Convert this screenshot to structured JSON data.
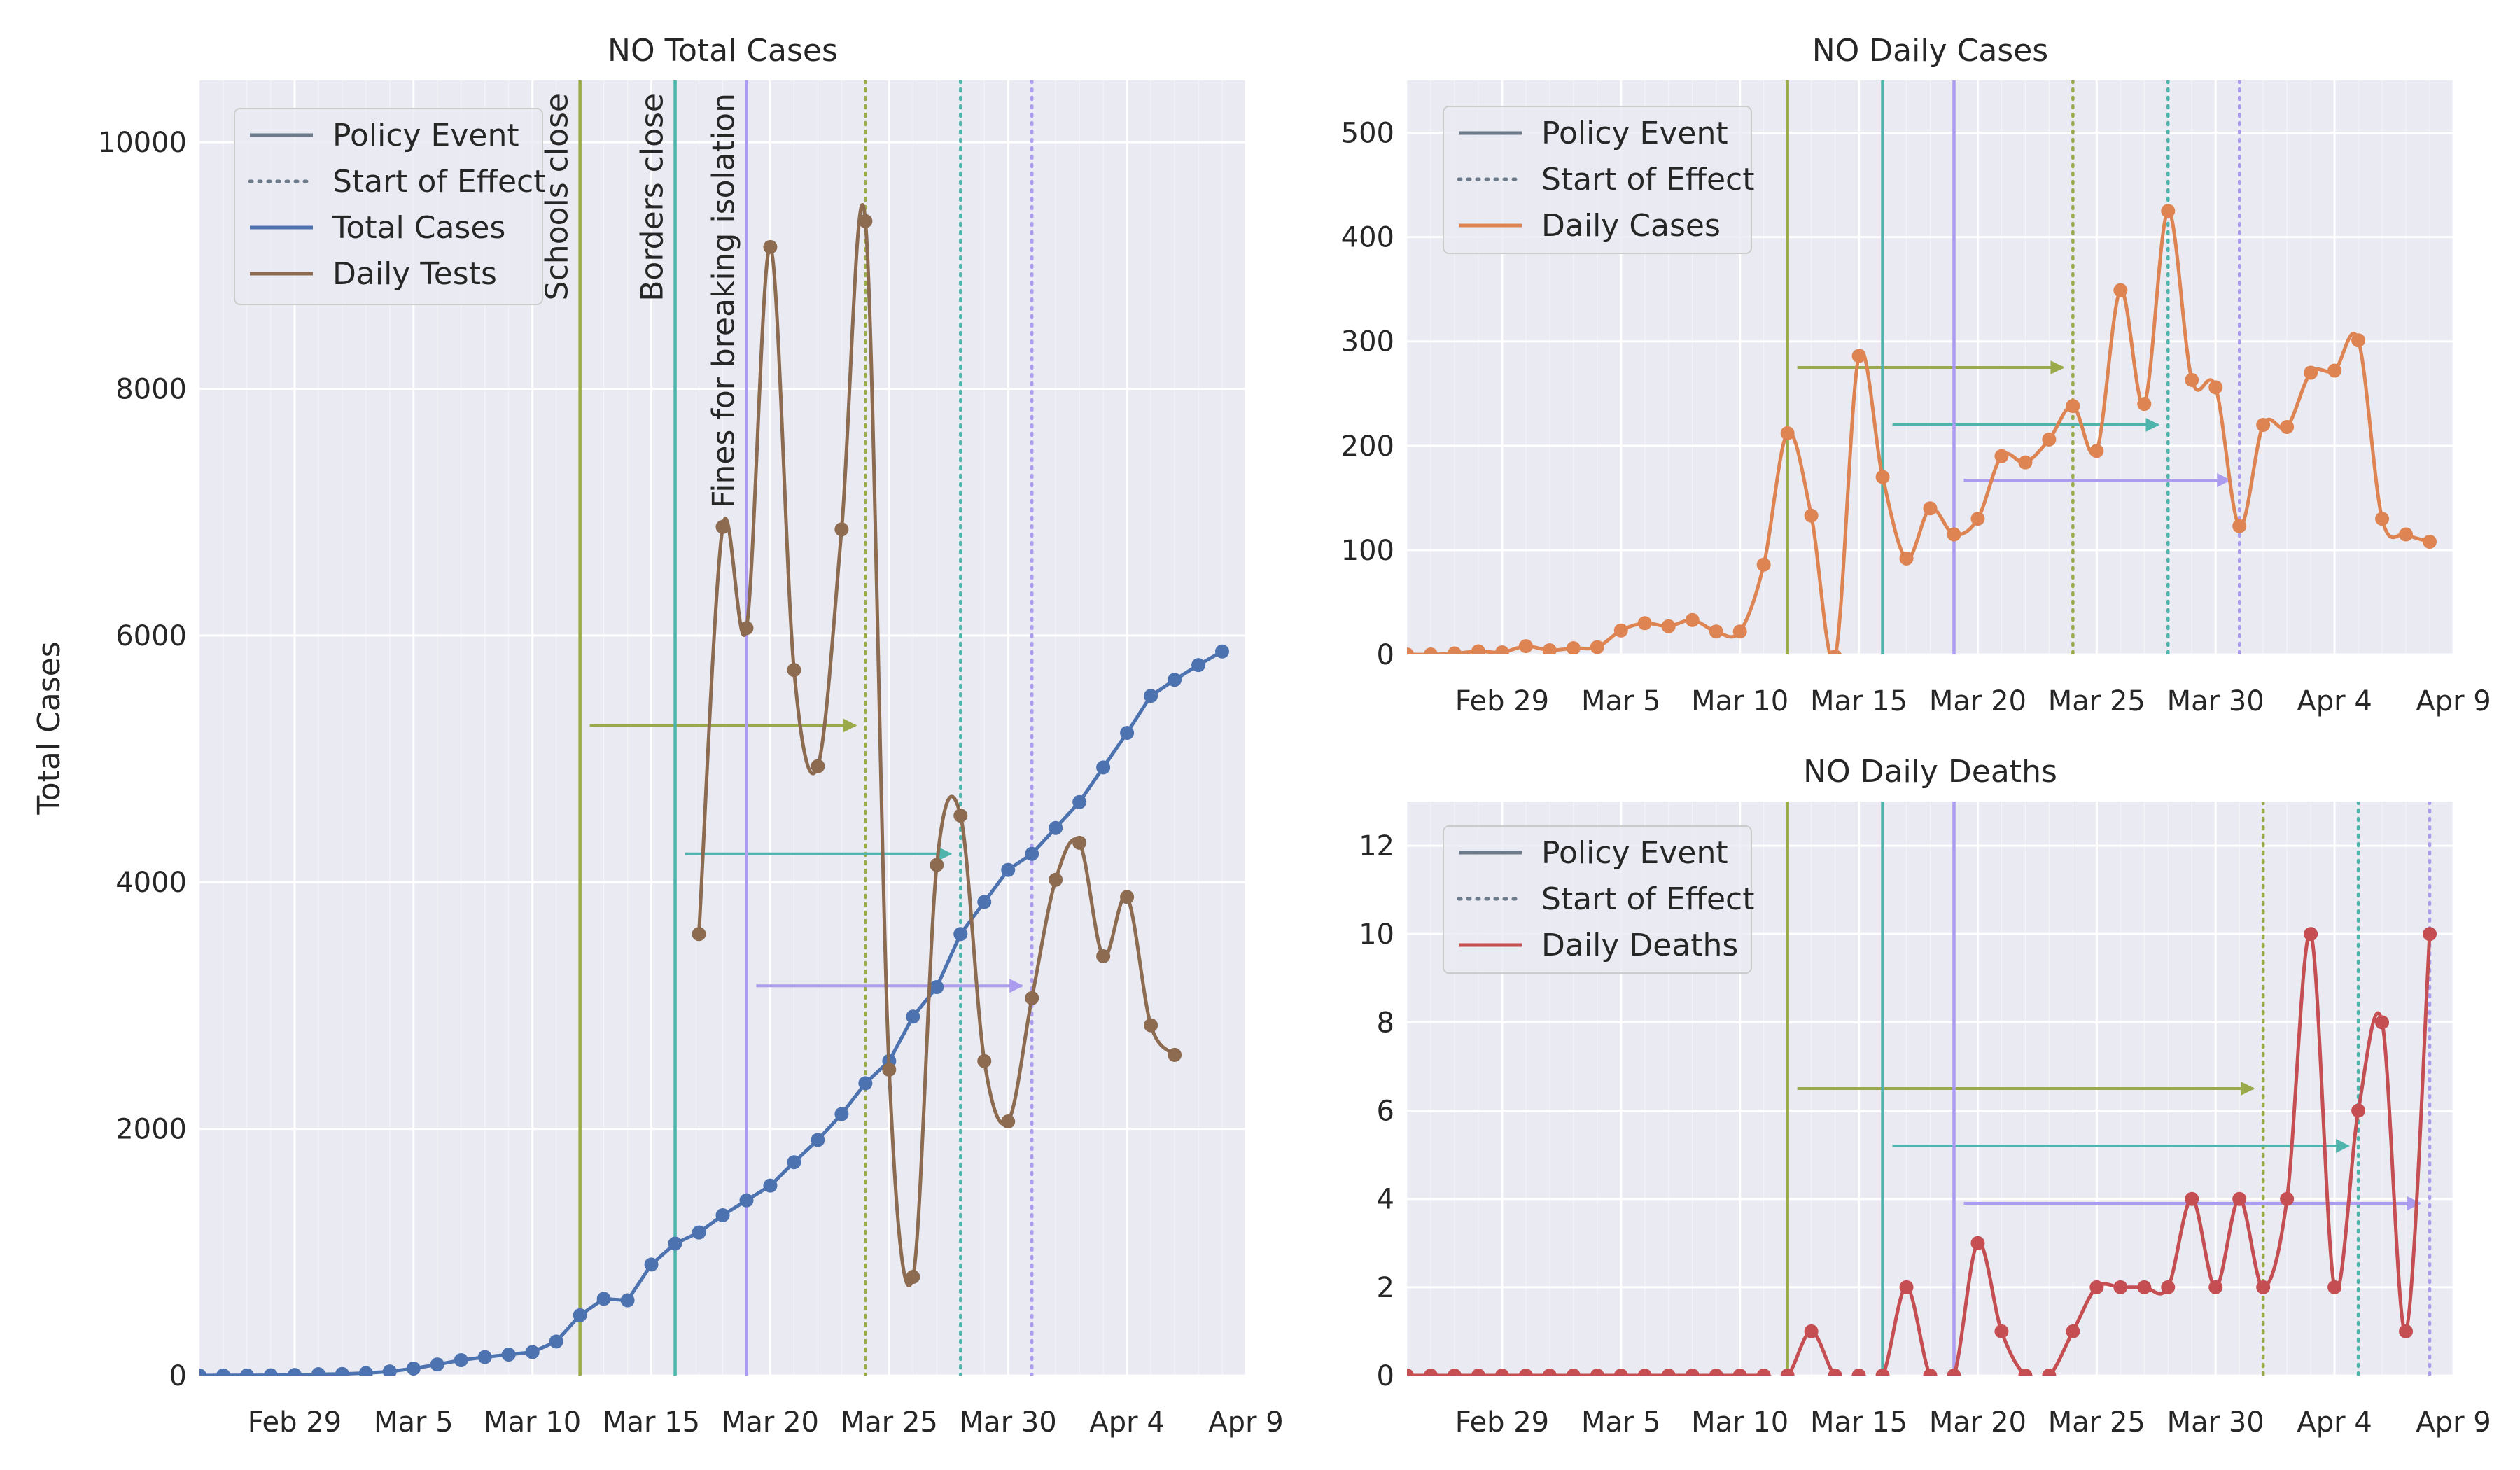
{
  "colors": {
    "plot_bg": "#eaeaf2",
    "grid": "#ffffff",
    "policy_line": "#6c7a89",
    "schools": "#9aaa4a",
    "borders": "#4fb5ac",
    "fines": "#ab9cf0",
    "total_cases": "#4c72b0",
    "daily_tests": "#8c6b50",
    "daily_cases": "#dd8452",
    "daily_deaths": "#c44e52"
  },
  "x_axis": {
    "ticks": [
      "Feb 29",
      "Mar 5",
      "Mar 10",
      "Mar 15",
      "Mar 20",
      "Mar 25",
      "Mar 30",
      "Apr 4",
      "Apr 9"
    ],
    "range": [
      "Feb 25",
      "Apr 9"
    ],
    "minor_gridlines": "daily"
  },
  "events": [
    {
      "label": "Schools close",
      "date": "Mar 12",
      "effect_date": "Mar 24"
    },
    {
      "label": "Borders close",
      "date": "Mar 16",
      "effect_date": "Mar 28"
    },
    {
      "label": "Fines for breaking isolation",
      "date": "Mar 19",
      "effect_date": "Mar 31"
    }
  ],
  "chart_data": [
    {
      "id": "total",
      "type": "line",
      "title": "NO Total Cases",
      "ylabel": "Total Cases",
      "ylim": [
        0,
        10500
      ],
      "yticks": [
        "0",
        "2000",
        "4000",
        "6000",
        "8000",
        "10000"
      ],
      "legend": [
        "Policy Event",
        "Start of Effect",
        "Total Cases",
        "Daily Tests"
      ],
      "event_labels_shown": true,
      "death_based_lag": false,
      "series": [
        {
          "name": "Total Cases",
          "style": "linear",
          "x": [
            "Feb 25",
            "Feb 26",
            "Feb 27",
            "Feb 28",
            "Feb 29",
            "Mar 1",
            "Mar 2",
            "Mar 3",
            "Mar 4",
            "Mar 5",
            "Mar 6",
            "Mar 7",
            "Mar 8",
            "Mar 9",
            "Mar 10",
            "Mar 11",
            "Mar 12",
            "Mar 13",
            "Mar 14",
            "Mar 15",
            "Mar 16",
            "Mar 17",
            "Mar 18",
            "Mar 19",
            "Mar 20",
            "Mar 21",
            "Mar 22",
            "Mar 23",
            "Mar 24",
            "Mar 25",
            "Mar 26",
            "Mar 27",
            "Mar 28",
            "Mar 29",
            "Mar 30",
            "Mar 31",
            "Apr 1",
            "Apr 2",
            "Apr 3",
            "Apr 4",
            "Apr 5",
            "Apr 6",
            "Apr 7",
            "Apr 8"
          ],
          "y": [
            0,
            1,
            1,
            2,
            5,
            11,
            13,
            20,
            33,
            57,
            90,
            125,
            150,
            170,
            190,
            276,
            489,
            622,
            610,
            900,
            1070,
            1160,
            1300,
            1420,
            1540,
            1730,
            1910,
            2120,
            2370,
            2550,
            2910,
            3150,
            3580,
            3840,
            4100,
            4230,
            4440,
            4650,
            4930,
            5210,
            5510,
            5640,
            5760,
            5870
          ]
        },
        {
          "name": "Daily Tests",
          "style": "smooth",
          "x": [
            "Mar 17",
            "Mar 18",
            "Mar 19",
            "Mar 20",
            "Mar 21",
            "Mar 22",
            "Mar 23",
            "Mar 24",
            "Mar 25",
            "Mar 26",
            "Mar 27",
            "Mar 28",
            "Mar 29",
            "Mar 30",
            "Mar 31",
            "Apr 1",
            "Apr 2",
            "Apr 3",
            "Apr 4",
            "Apr 5",
            "Apr 6"
          ],
          "y": [
            3580,
            6880,
            6060,
            9150,
            5720,
            4940,
            6860,
            9360,
            2480,
            800,
            4140,
            4540,
            2550,
            2060,
            3060,
            4020,
            4320,
            3400,
            3880,
            2840,
            2600
          ]
        }
      ]
    },
    {
      "id": "cases",
      "type": "line",
      "title": "NO Daily Cases",
      "ylabel": "",
      "ylim": [
        0,
        550
      ],
      "yticks": [
        "0",
        "100",
        "200",
        "300",
        "400",
        "500"
      ],
      "legend": [
        "Policy Event",
        "Start of Effect",
        "Daily Cases"
      ],
      "event_labels_shown": false,
      "death_based_lag": false,
      "series": [
        {
          "name": "Daily Cases",
          "style": "smooth",
          "x": [
            "Feb 25",
            "Feb 26",
            "Feb 27",
            "Feb 28",
            "Feb 29",
            "Mar 1",
            "Mar 2",
            "Mar 3",
            "Mar 4",
            "Mar 5",
            "Mar 6",
            "Mar 7",
            "Mar 8",
            "Mar 9",
            "Mar 10",
            "Mar 11",
            "Mar 12",
            "Mar 13",
            "Mar 14",
            "Mar 15",
            "Mar 16",
            "Mar 17",
            "Mar 18",
            "Mar 19",
            "Mar 20",
            "Mar 21",
            "Mar 22",
            "Mar 23",
            "Mar 24",
            "Mar 25",
            "Mar 26",
            "Mar 27",
            "Mar 28",
            "Mar 29",
            "Mar 30",
            "Mar 31",
            "Apr 1",
            "Apr 2",
            "Apr 3",
            "Apr 4",
            "Apr 5",
            "Apr 6",
            "Apr 7",
            "Apr 8"
          ],
          "y": [
            0,
            0,
            1,
            3,
            2,
            8,
            4,
            6,
            7,
            23,
            30,
            27,
            33,
            22,
            22,
            86,
            212,
            133,
            -2,
            286,
            170,
            92,
            140,
            115,
            130,
            190,
            184,
            206,
            238,
            195,
            349,
            240,
            425,
            263,
            256,
            123,
            220,
            218,
            270,
            272,
            301,
            130,
            115,
            108
          ]
        }
      ]
    },
    {
      "id": "deaths",
      "type": "line",
      "title": "NO Daily Deaths",
      "ylabel": "",
      "ylim": [
        0,
        13
      ],
      "yticks": [
        "0",
        "2",
        "4",
        "6",
        "8",
        "10",
        "12"
      ],
      "legend": [
        "Policy Event",
        "Start of Effect",
        "Daily Deaths"
      ],
      "event_labels_shown": false,
      "death_based_lag": true,
      "series": [
        {
          "name": "Daily Deaths",
          "style": "smooth",
          "x": [
            "Feb 25",
            "Feb 26",
            "Feb 27",
            "Feb 28",
            "Feb 29",
            "Mar 1",
            "Mar 2",
            "Mar 3",
            "Mar 4",
            "Mar 5",
            "Mar 6",
            "Mar 7",
            "Mar 8",
            "Mar 9",
            "Mar 10",
            "Mar 11",
            "Mar 12",
            "Mar 13",
            "Mar 14",
            "Mar 15",
            "Mar 16",
            "Mar 17",
            "Mar 18",
            "Mar 19",
            "Mar 20",
            "Mar 21",
            "Mar 22",
            "Mar 23",
            "Mar 24",
            "Mar 25",
            "Mar 26",
            "Mar 27",
            "Mar 28",
            "Mar 29",
            "Mar 30",
            "Mar 31",
            "Apr 1",
            "Apr 2",
            "Apr 3",
            "Apr 4",
            "Apr 5",
            "Apr 6",
            "Apr 7",
            "Apr 8"
          ],
          "y": [
            0,
            0,
            0,
            0,
            0,
            0,
            0,
            0,
            0,
            0,
            0,
            0,
            0,
            0,
            0,
            0,
            0,
            1,
            0,
            0,
            0,
            2,
            0,
            0,
            3,
            1,
            0,
            0,
            1,
            2,
            2,
            2,
            2,
            4,
            2,
            4,
            2,
            4,
            10,
            2,
            6,
            8,
            1,
            10
          ]
        }
      ]
    }
  ]
}
